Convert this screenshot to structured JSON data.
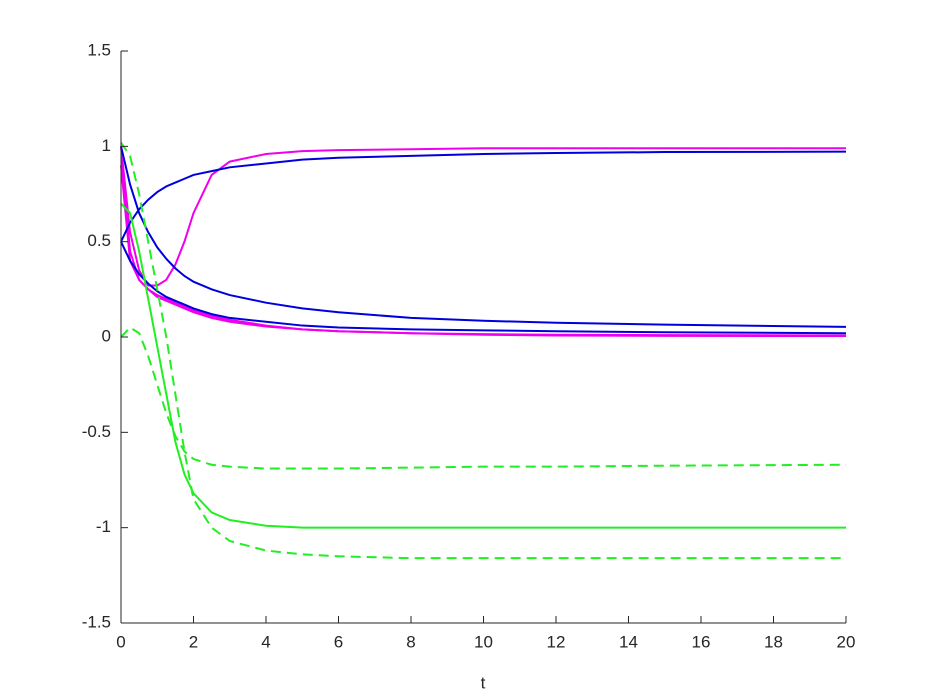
{
  "chart_data": {
    "type": "line",
    "x_label": "t",
    "x": [
      0,
      0.25,
      0.5,
      0.75,
      1,
      1.25,
      1.5,
      1.75,
      2,
      2.5,
      3,
      4,
      5,
      6,
      8,
      10,
      12,
      15,
      20
    ],
    "xlim": [
      0,
      20
    ],
    "xticks": [
      0,
      2,
      4,
      6,
      8,
      10,
      12,
      14,
      16,
      18,
      20
    ],
    "ylim": [
      -1.5,
      1.5
    ],
    "yticks": [
      -1.5,
      -1,
      -0.5,
      0,
      0.5,
      1,
      1.5
    ],
    "grid": false,
    "series": [
      {
        "color": "#ee00ee",
        "linestyle": "solid",
        "values": [
          1,
          0.55,
          0.35,
          0.27,
          0.27,
          0.3,
          0.38,
          0.5,
          0.65,
          0.85,
          0.92,
          0.96,
          0.975,
          0.98,
          0.985,
          0.99,
          0.99,
          0.99,
          0.99
        ]
      },
      {
        "color": "#ee00ee",
        "linestyle": "solid",
        "values": [
          1,
          0.45,
          0.3,
          0.25,
          0.22,
          0.2,
          0.18,
          0.16,
          0.14,
          0.11,
          0.09,
          0.06,
          0.04,
          0.03,
          0.02,
          0.012,
          0.008,
          0.006,
          0.005
        ]
      },
      {
        "color": "#ee00ee",
        "linestyle": "solid",
        "values": [
          0.9,
          0.4,
          0.3,
          0.25,
          0.21,
          0.19,
          0.17,
          0.15,
          0.13,
          0.1,
          0.08,
          0.055,
          0.04,
          0.03,
          0.02,
          0.015,
          0.012,
          0.01,
          0.008
        ]
      },
      {
        "color": "#0000dd",
        "linestyle": "solid",
        "values": [
          0.5,
          0.6,
          0.67,
          0.72,
          0.76,
          0.79,
          0.81,
          0.83,
          0.85,
          0.87,
          0.89,
          0.91,
          0.93,
          0.94,
          0.95,
          0.96,
          0.965,
          0.97,
          0.972
        ]
      },
      {
        "color": "#0000dd",
        "linestyle": "solid",
        "values": [
          1,
          0.8,
          0.65,
          0.55,
          0.47,
          0.41,
          0.36,
          0.32,
          0.29,
          0.25,
          0.22,
          0.18,
          0.15,
          0.13,
          0.1,
          0.085,
          0.075,
          0.065,
          0.053
        ]
      },
      {
        "color": "#0000dd",
        "linestyle": "solid",
        "values": [
          0.5,
          0.4,
          0.33,
          0.28,
          0.24,
          0.21,
          0.19,
          0.17,
          0.15,
          0.12,
          0.1,
          0.08,
          0.06,
          0.05,
          0.04,
          0.035,
          0.03,
          0.025,
          0.02
        ]
      },
      {
        "color": "#22ee22",
        "linestyle": "solid",
        "values": [
          0.7,
          0.65,
          0.45,
          0.2,
          -0.05,
          -0.3,
          -0.55,
          -0.72,
          -0.82,
          -0.92,
          -0.96,
          -0.99,
          -1,
          -1,
          -1,
          -1,
          -1,
          -1,
          -1
        ]
      },
      {
        "color": "#22ee22",
        "linestyle": "dashed",
        "values": [
          1.02,
          0.95,
          0.75,
          0.5,
          0.25,
          0,
          -0.3,
          -0.6,
          -0.85,
          -1,
          -1.07,
          -1.12,
          -1.14,
          -1.15,
          -1.16,
          -1.16,
          -1.16,
          -1.16,
          -1.16
        ]
      },
      {
        "color": "#22ee22",
        "linestyle": "dashed",
        "values": [
          0,
          0.05,
          0.02,
          -0.1,
          -0.25,
          -0.4,
          -0.52,
          -0.6,
          -0.64,
          -0.67,
          -0.68,
          -0.69,
          -0.69,
          -0.69,
          -0.685,
          -0.68,
          -0.68,
          -0.675,
          -0.67
        ]
      }
    ]
  }
}
